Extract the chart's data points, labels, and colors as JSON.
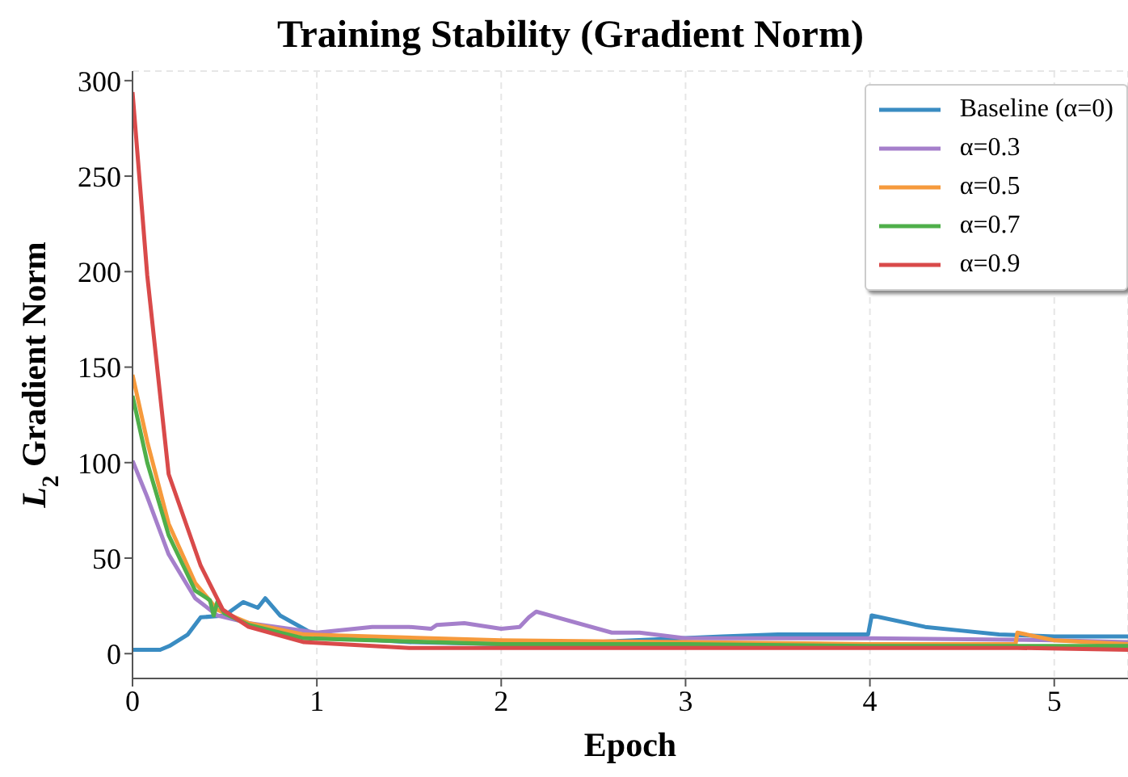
{
  "chart_data": {
    "type": "line",
    "title": "Training Stability (Gradient Norm)",
    "xlabel": "Epoch",
    "ylabel": "L$_{2}$ Gradient Norm",
    "xlim": [
      0,
      5.4
    ],
    "ylim": [
      -13,
      305
    ],
    "xticks": [
      0,
      1,
      2,
      3,
      4,
      5
    ],
    "yticks": [
      0,
      50,
      100,
      150,
      200,
      250,
      300
    ],
    "grid": true,
    "legend": "top right",
    "line_style": "solid",
    "marker": "none",
    "series": [
      {
        "name": "Baseline (α=0)",
        "color": "#3a8cc2",
        "x": [
          0,
          0.15,
          0.2,
          0.3,
          0.37,
          0.5,
          0.6,
          0.68,
          0.72,
          0.8,
          0.93,
          1.0,
          1.5,
          2.0,
          2.5,
          3.2,
          3.5,
          3.99,
          4.01,
          4.3,
          4.5,
          4.7,
          5.0,
          5.4
        ],
        "values": [
          2,
          2,
          4,
          10,
          19,
          20,
          27,
          24,
          29,
          20,
          13,
          9,
          6,
          5,
          6,
          9,
          10,
          10,
          20,
          14,
          12,
          10,
          9,
          9
        ]
      },
      {
        "name": "α=0.3",
        "color": "#a57fcb",
        "x": [
          0,
          0.08,
          0.196,
          0.34,
          0.46,
          0.63,
          0.93,
          1.0,
          1.3,
          1.5,
          1.62,
          1.65,
          1.8,
          2.0,
          2.1,
          2.15,
          2.19,
          2.6,
          2.75,
          3.0,
          3.5,
          4.0,
          5.0,
          5.4
        ],
        "values": [
          101,
          82,
          52,
          29,
          20,
          16,
          12,
          11,
          14,
          14,
          13,
          15,
          16,
          13,
          14,
          19,
          22,
          11,
          11,
          8,
          8,
          8,
          7,
          6
        ]
      },
      {
        "name": "α=0.5",
        "color": "#f69a3c",
        "x": [
          0,
          0.08,
          0.196,
          0.34,
          0.46,
          0.63,
          0.93,
          2.0,
          3.0,
          4.0,
          4.79,
          4.8,
          5.0,
          5.4
        ],
        "values": [
          146,
          111,
          68,
          37,
          23,
          16,
          10,
          7,
          6,
          5,
          5,
          11,
          7,
          5
        ]
      },
      {
        "name": "α=0.7",
        "color": "#4faf4a",
        "x": [
          0,
          0.08,
          0.196,
          0.34,
          0.42,
          0.44,
          0.46,
          0.5,
          0.63,
          0.93,
          2.0,
          3.0,
          4.0,
          5.4
        ],
        "values": [
          135,
          100,
          62,
          33,
          28,
          20,
          27,
          21,
          15,
          8,
          5,
          5,
          4,
          4
        ]
      },
      {
        "name": "α=0.9",
        "color": "#d94a4a",
        "x": [
          0,
          0.08,
          0.196,
          0.37,
          0.49,
          0.63,
          0.93,
          1.5,
          2.0,
          3.0,
          4.0,
          4.8,
          5.4
        ],
        "values": [
          294,
          198,
          94,
          46,
          23,
          14,
          6,
          3,
          3,
          3,
          3,
          3,
          2
        ]
      }
    ]
  }
}
